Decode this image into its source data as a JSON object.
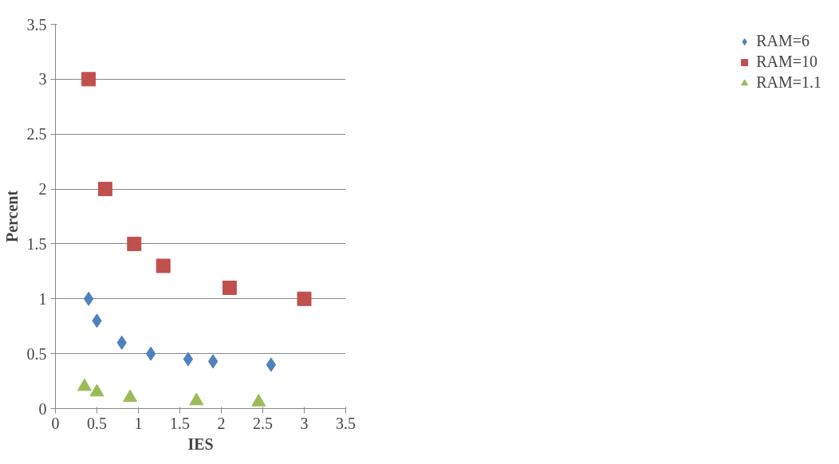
{
  "chart_data": {
    "type": "scatter",
    "xlabel": "IES",
    "ylabel": "Percent",
    "xlim": [
      0,
      3.5
    ],
    "ylim": [
      0,
      3.5
    ],
    "xticks": [
      0,
      0.5,
      1,
      1.5,
      2,
      2.5,
      3,
      3.5
    ],
    "yticks": [
      0,
      0.5,
      1,
      1.5,
      2,
      2.5,
      3,
      3.5
    ],
    "grid": "y",
    "legend": "right",
    "series": [
      {
        "name": "RAM=6",
        "color": "#4f81bd",
        "marker": "diamond",
        "x": [
          0.4,
          0.5,
          0.8,
          1.15,
          1.6,
          1.9,
          2.6
        ],
        "values": [
          1.0,
          0.8,
          0.6,
          0.5,
          0.45,
          0.43,
          0.4
        ]
      },
      {
        "name": "RAM=10",
        "color": "#c0504d",
        "marker": "square",
        "x": [
          0.4,
          0.6,
          0.95,
          1.3,
          2.1,
          3.0
        ],
        "values": [
          3.0,
          2.0,
          1.5,
          1.3,
          1.1,
          1.0
        ]
      },
      {
        "name": "RAM=1.1",
        "color": "#9bbb59",
        "marker": "triangle",
        "x": [
          0.35,
          0.5,
          0.9,
          1.7,
          2.45
        ],
        "values": [
          0.2,
          0.15,
          0.1,
          0.07,
          0.06
        ]
      }
    ]
  }
}
